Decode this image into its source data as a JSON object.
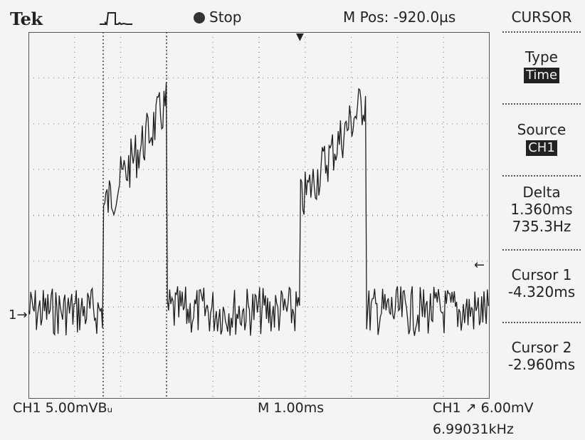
{
  "header": {
    "brand": "Tek",
    "trigger_icon": "pulse-trigger-icon",
    "run_state": "Stop",
    "m_pos": "M Pos: -920.0µs"
  },
  "menu": {
    "title": "CURSOR",
    "items": [
      {
        "label": "Type",
        "value": "Time",
        "highlight": true
      },
      {
        "label": "Source",
        "value": "CH1",
        "highlight": true
      },
      {
        "label": "Delta",
        "value": "1.360ms",
        "value2": "735.3Hz"
      },
      {
        "label": "Cursor 1",
        "value": "-4.320ms"
      },
      {
        "label": "Cursor 2",
        "value": "-2.960ms"
      }
    ]
  },
  "markers": {
    "channel_marker": "1→",
    "trigger_level_marker": "←",
    "trigger_pos_marker": "▼"
  },
  "footer": {
    "ch1_scale": "CH1  5.00mVBᵤ",
    "time_scale": "M 1.00ms",
    "trigger": "CH1 ↗ 6.00mV",
    "frequency": "6.99031kHz"
  },
  "colors": {
    "background": "#f4f4f2",
    "trace": "#1e1e1e",
    "grid": "#777777"
  }
}
